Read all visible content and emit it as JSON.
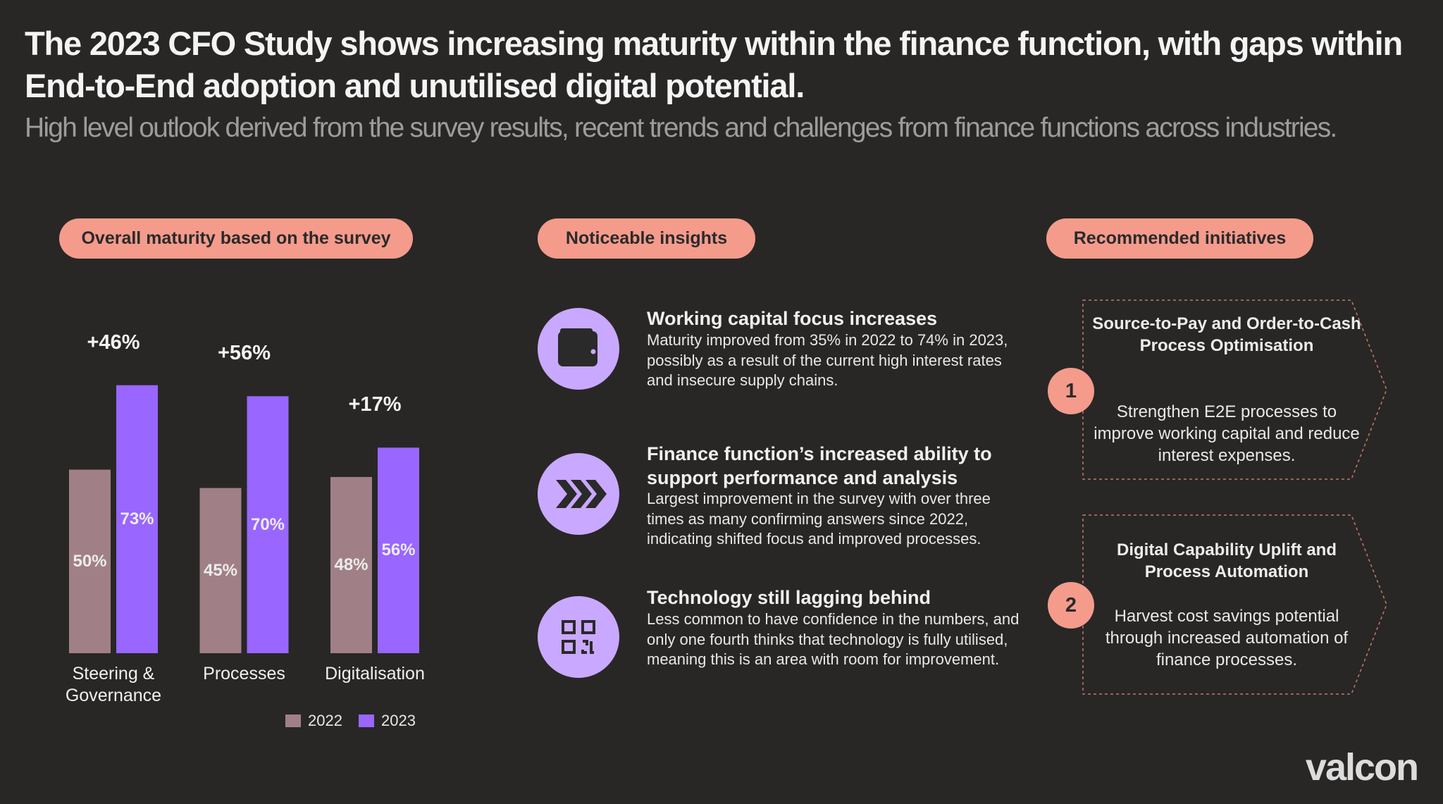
{
  "title": "The 2023 CFO Study shows increasing maturity within the finance function, with gaps within End-to-End adoption and unutilised digital potential.",
  "subtitle": "High level outlook derived from the survey results, recent trends and challenges from finance functions across industries.",
  "sections": [
    "Overall maturity based on the survey",
    "Noticeable insights",
    "Recommended initiatives"
  ],
  "chart_data": {
    "type": "bar",
    "categories": [
      "Steering & Governance",
      "Processes",
      "Digitalisation"
    ],
    "series": [
      {
        "name": "2022",
        "color": "#a08086",
        "values": [
          50,
          45,
          48
        ],
        "value_labels": [
          "50%",
          "45%",
          "48%"
        ]
      },
      {
        "name": "2023",
        "color": "#9966ff",
        "values": [
          73,
          70,
          56
        ],
        "value_labels": [
          "73%",
          "70%",
          "56%"
        ]
      }
    ],
    "annotations": [
      "+46%",
      "+56%",
      "+17%"
    ]
  },
  "insights": [
    {
      "heading": "Working capital focus increases",
      "body": "Maturity improved from 35% in 2022 to 74% in 2023, possibly as a result of the current high interest rates and insecure supply chains."
    },
    {
      "heading": "Finance function’s increased ability to support performance and analysis",
      "body": "Largest improvement in the survey with over three times as many confirming answers since 2022, indicating shifted focus and improved processes."
    },
    {
      "heading": "Technology still lagging behind",
      "body": "Less common to have confidence in the numbers, and only one fourth thinks that technology is fully utilised, meaning this is an area with room for improvement."
    }
  ],
  "initiatives": [
    {
      "number": 1,
      "heading": "Source-to-Pay and Order-to-Cash Process Optimisation",
      "body": "Strengthen E2E processes to improve working capital and reduce interest expenses."
    },
    {
      "number": 2,
      "heading": "Digital Capability Uplift and Process Automation",
      "body": "Harvest cost savings potential through increased automation of finance processes."
    }
  ],
  "logo": "valcon"
}
